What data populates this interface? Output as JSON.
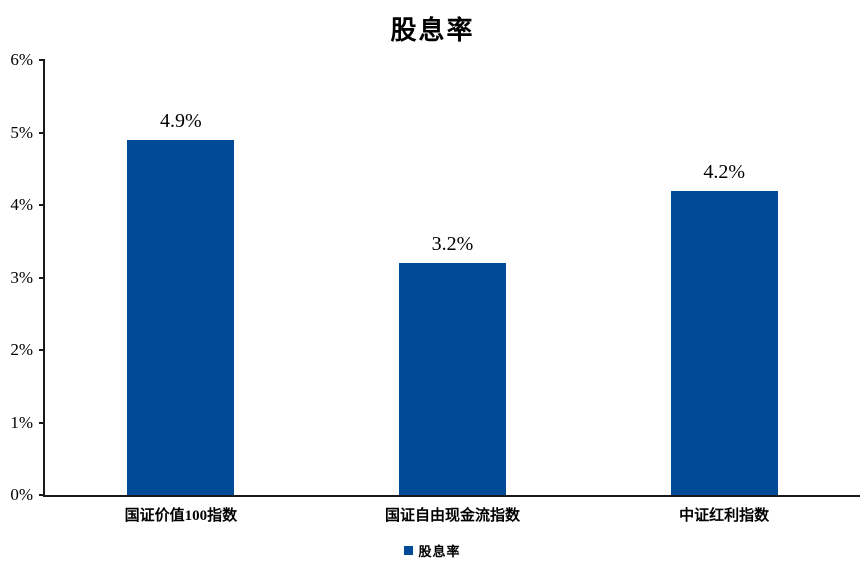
{
  "title": "股息率",
  "colors": {
    "bar": "#004B97",
    "axis": "#1a1a1a",
    "text": "#000000",
    "background": "#ffffff"
  },
  "chart_data": {
    "type": "bar",
    "title": "股息率",
    "categories": [
      "国证价值100指数",
      "国证自由现金流指数",
      "中证红利指数"
    ],
    "values": [
      4.9,
      3.2,
      4.2
    ],
    "data_labels": [
      "4.9%",
      "3.2%",
      "4.2%"
    ],
    "xlabel": "",
    "ylabel": "",
    "ylim": [
      0,
      6
    ],
    "ytick_step": 1,
    "ytick_labels": [
      "0%",
      "1%",
      "2%",
      "3%",
      "4%",
      "5%",
      "6%"
    ],
    "grid": false,
    "bar_color": "#004B97",
    "legend_position": "bottom",
    "legend": [
      {
        "label": "股息率",
        "color": "#004B97"
      }
    ]
  }
}
